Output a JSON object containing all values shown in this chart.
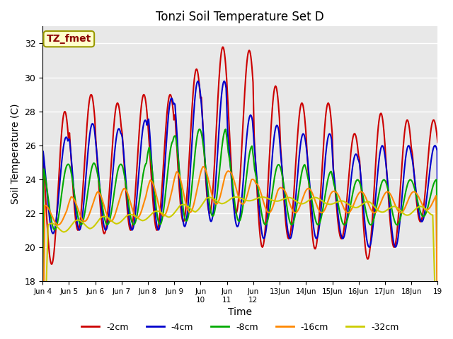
{
  "title": "Tonzi Soil Temperature Set D",
  "xlabel": "Time",
  "ylabel": "Soil Temperature (C)",
  "annotation_text": "TZ_fmet",
  "annotation_color": "#8B0000",
  "annotation_bg": "#FFFFCC",
  "annotation_border": "#999900",
  "ylim": [
    18,
    33
  ],
  "yticks": [
    18,
    20,
    22,
    24,
    26,
    28,
    30,
    32
  ],
  "colors": {
    "-2cm": "#CC0000",
    "-4cm": "#0000CC",
    "-8cm": "#00AA00",
    "-16cm": "#FF8800",
    "-32cm": "#CCCC00"
  },
  "line_width": 1.5,
  "plot_bg": "#E8E8E8",
  "grid_color": "white",
  "n_days": 15,
  "start_day": 4,
  "points_per_day": 48,
  "xtick_labels": [
    "Jun 4",
    "Jun 5",
    "Jun 6",
    "Jun 7",
    "Jun 8",
    "Jun 9",
    "Jun\n10",
    "Jun\n11",
    "Jun\n12",
    "13Jun",
    "14Jun",
    "15Jun",
    "16Jun",
    "17Jun",
    "18Jun",
    "19"
  ],
  "xtick_positions": [
    4,
    5,
    6,
    7,
    8,
    9,
    10,
    11,
    12,
    13,
    14,
    15,
    16,
    17,
    18,
    19
  ]
}
